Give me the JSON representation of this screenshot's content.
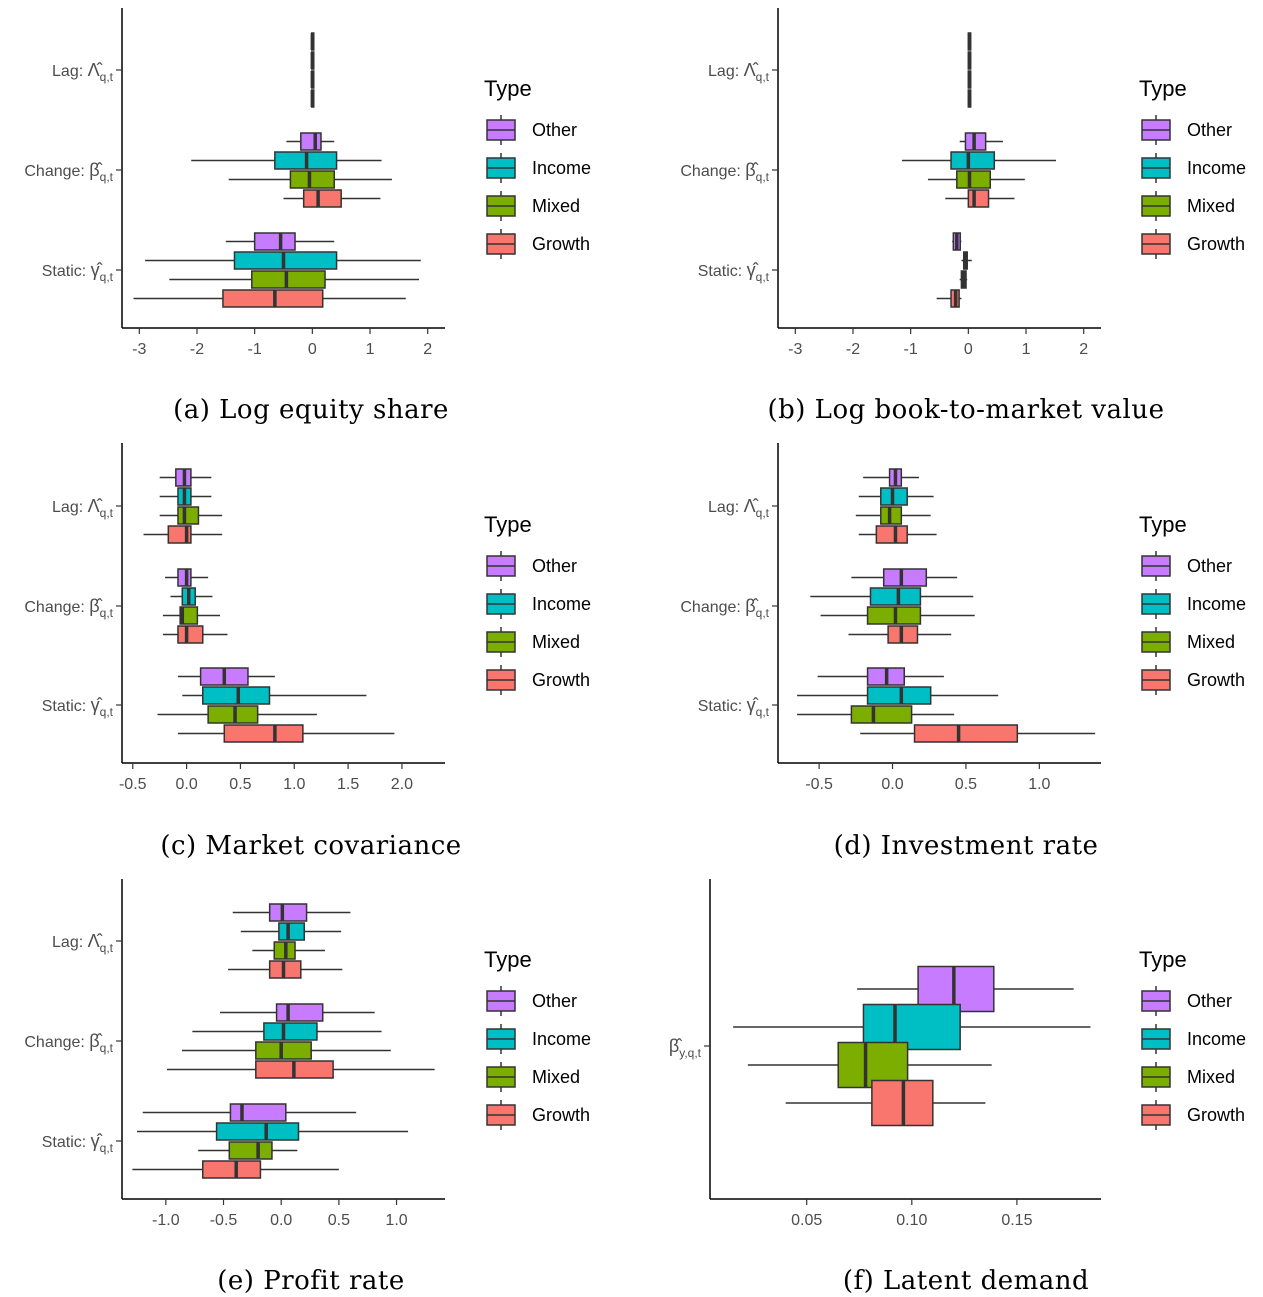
{
  "legend": {
    "title": "Type",
    "items": [
      {
        "name": "Other",
        "color": "#C77CFF"
      },
      {
        "name": "Income",
        "color": "#00BFC4"
      },
      {
        "name": "Mixed",
        "color": "#7CAE00"
      },
      {
        "name": "Growth",
        "color": "#F8766D"
      }
    ]
  },
  "chart_data": [
    {
      "type": "boxplot",
      "caption": "(a) Log equity share",
      "xlim": [
        -3.3,
        2.3
      ],
      "xticks": [
        -3,
        -2,
        -1,
        0,
        1,
        2
      ],
      "xtick_labels": [
        "-3",
        "-2",
        "-1",
        "0",
        "1",
        "2"
      ],
      "groups": [
        {
          "label": {
            "main": "Lag: ",
            "sym": "Λ",
            "sub": "q,t"
          },
          "boxes": [
            {
              "type": "Other",
              "whisker_low": -0.02,
              "q1": -0.01,
              "median": 0.0,
              "q3": 0.01,
              "whisker_high": 0.02
            },
            {
              "type": "Income",
              "whisker_low": -0.02,
              "q1": -0.01,
              "median": 0.0,
              "q3": 0.01,
              "whisker_high": 0.02
            },
            {
              "type": "Mixed",
              "whisker_low": -0.02,
              "q1": -0.01,
              "median": 0.0,
              "q3": 0.01,
              "whisker_high": 0.02
            },
            {
              "type": "Growth",
              "whisker_low": -0.02,
              "q1": -0.01,
              "median": 0.0,
              "q3": 0.01,
              "whisker_high": 0.02
            }
          ]
        },
        {
          "label": {
            "main": "Change: ",
            "sym": "β",
            "sub": "q,t"
          },
          "boxes": [
            {
              "type": "Other",
              "whisker_low": -0.45,
              "q1": -0.2,
              "median": 0.05,
              "q3": 0.15,
              "whisker_high": 0.38
            },
            {
              "type": "Income",
              "whisker_low": -2.1,
              "q1": -0.65,
              "median": -0.1,
              "q3": 0.42,
              "whisker_high": 1.2
            },
            {
              "type": "Mixed",
              "whisker_low": -1.45,
              "q1": -0.38,
              "median": -0.05,
              "q3": 0.38,
              "whisker_high": 1.38
            },
            {
              "type": "Growth",
              "whisker_low": -0.5,
              "q1": -0.15,
              "median": 0.1,
              "q3": 0.5,
              "whisker_high": 1.18
            }
          ]
        },
        {
          "label": {
            "main": "Static: ",
            "sym": "γ",
            "sub": "q,t"
          },
          "boxes": [
            {
              "type": "Other",
              "whisker_low": -1.5,
              "q1": -1.0,
              "median": -0.55,
              "q3": -0.3,
              "whisker_high": 0.38
            },
            {
              "type": "Income",
              "whisker_low": -2.9,
              "q1": -1.35,
              "median": -0.5,
              "q3": 0.42,
              "whisker_high": 1.88
            },
            {
              "type": "Mixed",
              "whisker_low": -2.48,
              "q1": -1.05,
              "median": -0.45,
              "q3": 0.22,
              "whisker_high": 1.85
            },
            {
              "type": "Growth",
              "whisker_low": -3.1,
              "q1": -1.55,
              "median": -0.65,
              "q3": 0.18,
              "whisker_high": 1.62
            }
          ]
        }
      ]
    },
    {
      "type": "boxplot",
      "caption": "(b) Log book-to-market value",
      "xlim": [
        -3.3,
        2.3
      ],
      "xticks": [
        -3,
        -2,
        -1,
        0,
        1,
        2
      ],
      "xtick_labels": [
        "-3",
        "-2",
        "-1",
        "0",
        "1",
        "2"
      ],
      "groups": [
        {
          "label": {
            "main": "Lag: ",
            "sym": "Λ",
            "sub": "q,t"
          },
          "boxes": [
            {
              "type": "Other",
              "whisker_low": -0.01,
              "q1": 0.0,
              "median": 0.02,
              "q3": 0.04,
              "whisker_high": 0.05
            },
            {
              "type": "Income",
              "whisker_low": -0.01,
              "q1": 0.0,
              "median": 0.02,
              "q3": 0.04,
              "whisker_high": 0.05
            },
            {
              "type": "Mixed",
              "whisker_low": -0.01,
              "q1": 0.0,
              "median": 0.02,
              "q3": 0.04,
              "whisker_high": 0.05
            },
            {
              "type": "Growth",
              "whisker_low": -0.01,
              "q1": 0.0,
              "median": 0.02,
              "q3": 0.04,
              "whisker_high": 0.05
            }
          ]
        },
        {
          "label": {
            "main": "Change: ",
            "sym": "β",
            "sub": "q,t"
          },
          "boxes": [
            {
              "type": "Other",
              "whisker_low": -0.15,
              "q1": -0.05,
              "median": 0.1,
              "q3": 0.3,
              "whisker_high": 0.6
            },
            {
              "type": "Income",
              "whisker_low": -1.15,
              "q1": -0.3,
              "median": 0.0,
              "q3": 0.45,
              "whisker_high": 1.52
            },
            {
              "type": "Mixed",
              "whisker_low": -0.7,
              "q1": -0.2,
              "median": 0.02,
              "q3": 0.38,
              "whisker_high": 0.98
            },
            {
              "type": "Growth",
              "whisker_low": -0.4,
              "q1": 0.0,
              "median": 0.1,
              "q3": 0.35,
              "whisker_high": 0.8
            }
          ]
        },
        {
          "label": {
            "main": "Static: ",
            "sym": "γ",
            "sub": "q,t"
          },
          "boxes": [
            {
              "type": "Other",
              "whisker_low": -0.28,
              "q1": -0.26,
              "median": -0.2,
              "q3": -0.14,
              "whisker_high": -0.12
            },
            {
              "type": "Income",
              "whisker_low": -0.12,
              "q1": -0.08,
              "median": -0.04,
              "q3": -0.02,
              "whisker_high": 0.06
            },
            {
              "type": "Mixed",
              "whisker_low": -0.15,
              "q1": -0.12,
              "median": -0.08,
              "q3": -0.04,
              "whisker_high": -0.02
            },
            {
              "type": "Growth",
              "whisker_low": -0.55,
              "q1": -0.3,
              "median": -0.22,
              "q3": -0.16,
              "whisker_high": -0.12
            }
          ]
        }
      ]
    },
    {
      "type": "boxplot",
      "caption": "(c) Market covariance",
      "xlim": [
        -0.6,
        2.4
      ],
      "xticks": [
        -0.5,
        0,
        0.5,
        1,
        1.5,
        2
      ],
      "xtick_labels": [
        "-0.5",
        "0.0",
        "0.5",
        "1.0",
        "1.5",
        "2.0"
      ],
      "groups": [
        {
          "label": {
            "main": "Lag: ",
            "sym": "Λ",
            "sub": "q,t"
          },
          "boxes": [
            {
              "type": "Other",
              "whisker_low": -0.25,
              "q1": -0.1,
              "median": -0.02,
              "q3": 0.04,
              "whisker_high": 0.23
            },
            {
              "type": "Income",
              "whisker_low": -0.25,
              "q1": -0.08,
              "median": -0.02,
              "q3": 0.04,
              "whisker_high": 0.23
            },
            {
              "type": "Mixed",
              "whisker_low": -0.25,
              "q1": -0.08,
              "median": -0.02,
              "q3": 0.11,
              "whisker_high": 0.33
            },
            {
              "type": "Growth",
              "whisker_low": -0.4,
              "q1": -0.17,
              "median": 0.0,
              "q3": 0.04,
              "whisker_high": 0.33
            }
          ]
        },
        {
          "label": {
            "main": "Change: ",
            "sym": "β",
            "sub": "q,t"
          },
          "boxes": [
            {
              "type": "Other",
              "whisker_low": -0.2,
              "q1": -0.08,
              "median": 0.0,
              "q3": 0.04,
              "whisker_high": 0.2
            },
            {
              "type": "Income",
              "whisker_low": -0.15,
              "q1": -0.04,
              "median": 0.02,
              "q3": 0.08,
              "whisker_high": 0.24
            },
            {
              "type": "Mixed",
              "whisker_low": -0.22,
              "q1": -0.06,
              "median": -0.04,
              "q3": 0.1,
              "whisker_high": 0.31
            },
            {
              "type": "Growth",
              "whisker_low": -0.22,
              "q1": -0.08,
              "median": 0.0,
              "q3": 0.15,
              "whisker_high": 0.38
            }
          ]
        },
        {
          "label": {
            "main": "Static: ",
            "sym": "γ",
            "sub": "q,t"
          },
          "boxes": [
            {
              "type": "Other",
              "whisker_low": -0.08,
              "q1": 0.13,
              "median": 0.35,
              "q3": 0.57,
              "whisker_high": 0.82
            },
            {
              "type": "Income",
              "whisker_low": -0.04,
              "q1": 0.15,
              "median": 0.48,
              "q3": 0.77,
              "whisker_high": 1.67
            },
            {
              "type": "Mixed",
              "whisker_low": -0.27,
              "q1": 0.2,
              "median": 0.45,
              "q3": 0.66,
              "whisker_high": 1.21
            },
            {
              "type": "Growth",
              "whisker_low": -0.08,
              "q1": 0.35,
              "median": 0.82,
              "q3": 1.08,
              "whisker_high": 1.93
            }
          ]
        }
      ]
    },
    {
      "type": "boxplot",
      "caption": "(d) Investment rate",
      "xlim": [
        -0.78,
        1.42
      ],
      "xticks": [
        -0.5,
        0,
        0.5,
        1
      ],
      "xtick_labels": [
        "-0.5",
        "0.0",
        "0.5",
        "1.0"
      ],
      "groups": [
        {
          "label": {
            "main": "Lag: ",
            "sym": "Λ",
            "sub": "q,t"
          },
          "boxes": [
            {
              "type": "Other",
              "whisker_low": -0.2,
              "q1": -0.02,
              "median": 0.02,
              "q3": 0.06,
              "whisker_high": 0.18
            },
            {
              "type": "Income",
              "whisker_low": -0.23,
              "q1": -0.08,
              "median": 0.0,
              "q3": 0.1,
              "whisker_high": 0.28
            },
            {
              "type": "Mixed",
              "whisker_low": -0.25,
              "q1": -0.08,
              "median": -0.02,
              "q3": 0.06,
              "whisker_high": 0.26
            },
            {
              "type": "Growth",
              "whisker_low": -0.23,
              "q1": -0.11,
              "median": 0.02,
              "q3": 0.1,
              "whisker_high": 0.3
            }
          ]
        },
        {
          "label": {
            "main": "Change: ",
            "sym": "β",
            "sub": "q,t"
          },
          "boxes": [
            {
              "type": "Other",
              "whisker_low": -0.28,
              "q1": -0.06,
              "median": 0.06,
              "q3": 0.23,
              "whisker_high": 0.44
            },
            {
              "type": "Income",
              "whisker_low": -0.56,
              "q1": -0.15,
              "median": 0.04,
              "q3": 0.19,
              "whisker_high": 0.55
            },
            {
              "type": "Mixed",
              "whisker_low": -0.49,
              "q1": -0.17,
              "median": 0.02,
              "q3": 0.19,
              "whisker_high": 0.56
            },
            {
              "type": "Growth",
              "whisker_low": -0.3,
              "q1": -0.03,
              "median": 0.06,
              "q3": 0.17,
              "whisker_high": 0.4
            }
          ]
        },
        {
          "label": {
            "main": "Static: ",
            "sym": "γ",
            "sub": "q,t"
          },
          "boxes": [
            {
              "type": "Other",
              "whisker_low": -0.51,
              "q1": -0.17,
              "median": -0.04,
              "q3": 0.08,
              "whisker_high": 0.35
            },
            {
              "type": "Income",
              "whisker_low": -0.65,
              "q1": -0.17,
              "median": 0.06,
              "q3": 0.26,
              "whisker_high": 0.72
            },
            {
              "type": "Mixed",
              "whisker_low": -0.65,
              "q1": -0.28,
              "median": -0.13,
              "q3": 0.13,
              "whisker_high": 0.42
            },
            {
              "type": "Growth",
              "whisker_low": -0.22,
              "q1": 0.15,
              "median": 0.45,
              "q3": 0.85,
              "whisker_high": 1.38
            }
          ]
        }
      ]
    },
    {
      "type": "boxplot",
      "caption": "(e) Profit rate",
      "xlim": [
        -1.38,
        1.42
      ],
      "xticks": [
        -1,
        -0.5,
        0,
        0.5,
        1
      ],
      "xtick_labels": [
        "-1.0",
        "-0.5",
        "0.0",
        "0.5",
        "1.0"
      ],
      "groups": [
        {
          "label": {
            "main": "Lag: ",
            "sym": "Λ",
            "sub": "q,t"
          },
          "boxes": [
            {
              "type": "Other",
              "whisker_low": -0.42,
              "q1": -0.1,
              "median": 0.01,
              "q3": 0.22,
              "whisker_high": 0.6
            },
            {
              "type": "Income",
              "whisker_low": -0.35,
              "q1": -0.02,
              "median": 0.06,
              "q3": 0.2,
              "whisker_high": 0.52
            },
            {
              "type": "Mixed",
              "whisker_low": -0.25,
              "q1": -0.06,
              "median": 0.04,
              "q3": 0.12,
              "whisker_high": 0.38
            },
            {
              "type": "Growth",
              "whisker_low": -0.46,
              "q1": -0.1,
              "median": 0.02,
              "q3": 0.17,
              "whisker_high": 0.53
            }
          ]
        },
        {
          "label": {
            "main": "Change: ",
            "sym": "β",
            "sub": "q,t"
          },
          "boxes": [
            {
              "type": "Other",
              "whisker_low": -0.53,
              "q1": -0.04,
              "median": 0.06,
              "q3": 0.36,
              "whisker_high": 0.81
            },
            {
              "type": "Income",
              "whisker_low": -0.77,
              "q1": -0.15,
              "median": 0.02,
              "q3": 0.31,
              "whisker_high": 0.87
            },
            {
              "type": "Mixed",
              "whisker_low": -0.86,
              "q1": -0.22,
              "median": 0.0,
              "q3": 0.26,
              "whisker_high": 0.95
            },
            {
              "type": "Growth",
              "whisker_low": -0.99,
              "q1": -0.22,
              "median": 0.11,
              "q3": 0.45,
              "whisker_high": 1.33
            }
          ]
        },
        {
          "label": {
            "main": "Static: ",
            "sym": "γ",
            "sub": "q,t"
          },
          "boxes": [
            {
              "type": "Other",
              "whisker_low": -1.2,
              "q1": -0.44,
              "median": -0.34,
              "q3": 0.04,
              "whisker_high": 0.65
            },
            {
              "type": "Income",
              "whisker_low": -1.25,
              "q1": -0.56,
              "median": -0.13,
              "q3": 0.15,
              "whisker_high": 1.1
            },
            {
              "type": "Mixed",
              "whisker_low": -0.72,
              "q1": -0.45,
              "median": -0.2,
              "q3": -0.08,
              "whisker_high": 0.14
            },
            {
              "type": "Growth",
              "whisker_low": -1.29,
              "q1": -0.68,
              "median": -0.39,
              "q3": -0.18,
              "whisker_high": 0.5
            }
          ]
        }
      ]
    },
    {
      "type": "boxplot",
      "caption": "(f) Latent demand",
      "xlim": [
        0.004,
        0.19
      ],
      "xticks": [
        0.05,
        0.1,
        0.15
      ],
      "xtick_labels": [
        "0.05",
        "0.10",
        "0.15"
      ],
      "groups": [
        {
          "label": {
            "main": "",
            "sym": "β",
            "sub": "y,q,t"
          },
          "boxes": [
            {
              "type": "Other",
              "whisker_low": 0.074,
              "q1": 0.103,
              "median": 0.12,
              "q3": 0.139,
              "whisker_high": 0.177
            },
            {
              "type": "Income",
              "whisker_low": 0.015,
              "q1": 0.077,
              "median": 0.092,
              "q3": 0.123,
              "whisker_high": 0.185
            },
            {
              "type": "Mixed",
              "whisker_low": 0.022,
              "q1": 0.065,
              "median": 0.078,
              "q3": 0.098,
              "whisker_high": 0.138
            },
            {
              "type": "Growth",
              "whisker_low": 0.04,
              "q1": 0.081,
              "median": 0.096,
              "q3": 0.11,
              "whisker_high": 0.135
            }
          ]
        }
      ]
    }
  ]
}
